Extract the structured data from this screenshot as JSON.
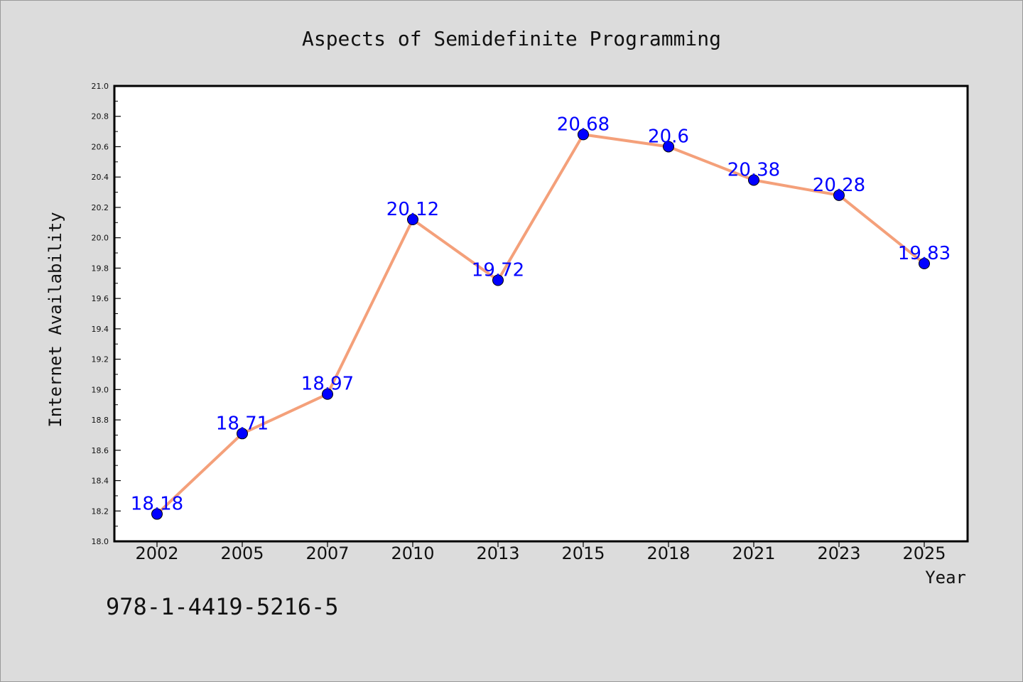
{
  "chart_data": {
    "type": "line",
    "title": "Aspects of Semidefinite Programming",
    "xlabel": "Year",
    "ylabel": "Internet Availability",
    "categories": [
      "2002",
      "2005",
      "2007",
      "2010",
      "2013",
      "2015",
      "2018",
      "2021",
      "2023",
      "2025"
    ],
    "series": [
      {
        "values": [
          18.18,
          18.71,
          18.97,
          20.12,
          19.72,
          20.68,
          20.6,
          20.38,
          20.28,
          19.83
        ],
        "labels": [
          "18.18",
          "18.71",
          "18.97",
          "20.12",
          "19.72",
          "20.68",
          "20.6",
          "20.38",
          "20.28",
          "19.83"
        ],
        "line_color": "#f4a07a",
        "marker_color": "#0000ff"
      }
    ],
    "ylim": [
      18.0,
      21.0
    ],
    "yticks": [
      "18.0",
      "18.2",
      "18.4",
      "18.6",
      "18.8",
      "19.0",
      "19.2",
      "19.4",
      "19.6",
      "19.8",
      "20.0",
      "20.2",
      "20.4",
      "20.6",
      "20.8",
      "21.0"
    ],
    "grid": false
  },
  "footer": {
    "isbn": "978-1-4419-5216-5"
  },
  "colors": {
    "background": "#dcdcdc",
    "plot_background": "#ffffff",
    "data_label": "#0000ff"
  }
}
